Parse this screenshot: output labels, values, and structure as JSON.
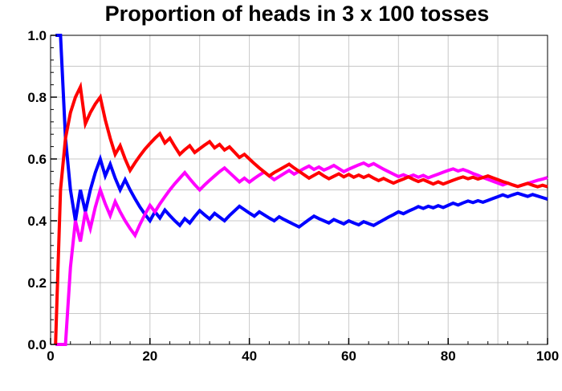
{
  "chart_data": {
    "type": "line",
    "title": "Proportion of heads in 3 x 100 tosses",
    "xlabel": "",
    "ylabel": "",
    "xlim": [
      0,
      100
    ],
    "ylim": [
      0,
      1
    ],
    "x_ticks": [
      0,
      20,
      40,
      60,
      80,
      100
    ],
    "y_ticks": [
      0.0,
      0.2,
      0.4,
      0.6,
      0.8,
      1.0
    ],
    "x_tick_labels": [
      "0",
      "20",
      "40",
      "60",
      "80",
      "100"
    ],
    "y_tick_labels": [
      "0.0",
      "0.2",
      "0.4",
      "0.6",
      "0.8",
      "1.0"
    ],
    "grid": true,
    "legend": "none",
    "series": [
      {
        "color": "#0000ff",
        "x": [
          1,
          2,
          3,
          4,
          5,
          6,
          7,
          8,
          9,
          10,
          11,
          12,
          13,
          14,
          15,
          16,
          17,
          18,
          19,
          20,
          21,
          22,
          23,
          24,
          25,
          26,
          27,
          28,
          29,
          30,
          31,
          32,
          33,
          34,
          35,
          36,
          37,
          38,
          39,
          40,
          41,
          42,
          43,
          44,
          45,
          46,
          47,
          48,
          49,
          50,
          51,
          52,
          53,
          54,
          55,
          56,
          57,
          58,
          59,
          60,
          61,
          62,
          63,
          64,
          65,
          66,
          67,
          68,
          69,
          70,
          71,
          72,
          73,
          74,
          75,
          76,
          77,
          78,
          79,
          80,
          81,
          82,
          83,
          84,
          85,
          86,
          87,
          88,
          89,
          90,
          91,
          92,
          93,
          94,
          95,
          96,
          97,
          98,
          99,
          100
        ],
        "values": [
          1.0,
          1.0,
          0.667,
          0.5,
          0.4,
          0.5,
          0.429,
          0.5,
          0.556,
          0.6,
          0.545,
          0.583,
          0.538,
          0.5,
          0.533,
          0.5,
          0.471,
          0.444,
          0.421,
          0.4,
          0.429,
          0.409,
          0.435,
          0.417,
          0.4,
          0.385,
          0.407,
          0.393,
          0.414,
          0.433,
          0.419,
          0.406,
          0.424,
          0.412,
          0.4,
          0.417,
          0.432,
          0.447,
          0.436,
          0.425,
          0.415,
          0.429,
          0.419,
          0.409,
          0.4,
          0.413,
          0.404,
          0.396,
          0.388,
          0.38,
          0.392,
          0.404,
          0.415,
          0.407,
          0.4,
          0.393,
          0.404,
          0.397,
          0.39,
          0.4,
          0.393,
          0.387,
          0.397,
          0.391,
          0.385,
          0.394,
          0.403,
          0.412,
          0.42,
          0.429,
          0.423,
          0.431,
          0.438,
          0.446,
          0.44,
          0.447,
          0.442,
          0.449,
          0.443,
          0.45,
          0.457,
          0.451,
          0.458,
          0.464,
          0.459,
          0.465,
          0.46,
          0.466,
          0.472,
          0.478,
          0.484,
          0.478,
          0.484,
          0.489,
          0.484,
          0.479,
          0.485,
          0.48,
          0.475,
          0.47
        ]
      },
      {
        "color": "#ff00ff",
        "x": [
          1,
          2,
          3,
          4,
          5,
          6,
          7,
          8,
          9,
          10,
          11,
          12,
          13,
          14,
          15,
          16,
          17,
          18,
          19,
          20,
          21,
          22,
          23,
          24,
          25,
          26,
          27,
          28,
          29,
          30,
          31,
          32,
          33,
          34,
          35,
          36,
          37,
          38,
          39,
          40,
          41,
          42,
          43,
          44,
          45,
          46,
          47,
          48,
          49,
          50,
          51,
          52,
          53,
          54,
          55,
          56,
          57,
          58,
          59,
          60,
          61,
          62,
          63,
          64,
          65,
          66,
          67,
          68,
          69,
          70,
          71,
          72,
          73,
          74,
          75,
          76,
          77,
          78,
          79,
          80,
          81,
          82,
          83,
          84,
          85,
          86,
          87,
          88,
          89,
          90,
          91,
          92,
          93,
          94,
          95,
          96,
          97,
          98,
          99,
          100
        ],
        "values": [
          0.0,
          0.0,
          0.0,
          0.25,
          0.4,
          0.333,
          0.429,
          0.375,
          0.444,
          0.5,
          0.455,
          0.417,
          0.462,
          0.429,
          0.4,
          0.375,
          0.353,
          0.389,
          0.421,
          0.45,
          0.429,
          0.455,
          0.478,
          0.5,
          0.52,
          0.538,
          0.556,
          0.536,
          0.517,
          0.5,
          0.516,
          0.531,
          0.545,
          0.559,
          0.571,
          0.556,
          0.541,
          0.526,
          0.538,
          0.525,
          0.537,
          0.548,
          0.558,
          0.545,
          0.533,
          0.543,
          0.553,
          0.563,
          0.551,
          0.56,
          0.569,
          0.577,
          0.566,
          0.574,
          0.564,
          0.571,
          0.579,
          0.569,
          0.559,
          0.567,
          0.574,
          0.581,
          0.587,
          0.578,
          0.585,
          0.576,
          0.567,
          0.559,
          0.551,
          0.543,
          0.549,
          0.542,
          0.548,
          0.541,
          0.547,
          0.539,
          0.545,
          0.551,
          0.557,
          0.563,
          0.568,
          0.561,
          0.566,
          0.56,
          0.553,
          0.547,
          0.54,
          0.534,
          0.528,
          0.522,
          0.516,
          0.522,
          0.516,
          0.511,
          0.516,
          0.521,
          0.526,
          0.531,
          0.535,
          0.54
        ]
      },
      {
        "color": "#ff0000",
        "x": [
          1,
          2,
          3,
          4,
          5,
          6,
          7,
          8,
          9,
          10,
          11,
          12,
          13,
          14,
          15,
          16,
          17,
          18,
          19,
          20,
          21,
          22,
          23,
          24,
          25,
          26,
          27,
          28,
          29,
          30,
          31,
          32,
          33,
          34,
          35,
          36,
          37,
          38,
          39,
          40,
          41,
          42,
          43,
          44,
          45,
          46,
          47,
          48,
          49,
          50,
          51,
          52,
          53,
          54,
          55,
          56,
          57,
          58,
          59,
          60,
          61,
          62,
          63,
          64,
          65,
          66,
          67,
          68,
          69,
          70,
          71,
          72,
          73,
          74,
          75,
          76,
          77,
          78,
          79,
          80,
          81,
          82,
          83,
          84,
          85,
          86,
          87,
          88,
          89,
          90,
          91,
          92,
          93,
          94,
          95,
          96,
          97,
          98,
          99,
          100
        ],
        "values": [
          0.0,
          0.5,
          0.667,
          0.75,
          0.8,
          0.833,
          0.714,
          0.75,
          0.778,
          0.8,
          0.727,
          0.667,
          0.615,
          0.643,
          0.6,
          0.563,
          0.588,
          0.611,
          0.632,
          0.65,
          0.667,
          0.682,
          0.652,
          0.667,
          0.64,
          0.615,
          0.63,
          0.643,
          0.621,
          0.633,
          0.645,
          0.656,
          0.636,
          0.647,
          0.629,
          0.639,
          0.622,
          0.605,
          0.615,
          0.6,
          0.585,
          0.571,
          0.558,
          0.545,
          0.556,
          0.565,
          0.574,
          0.583,
          0.571,
          0.56,
          0.549,
          0.538,
          0.547,
          0.556,
          0.545,
          0.536,
          0.544,
          0.552,
          0.542,
          0.55,
          0.541,
          0.548,
          0.54,
          0.547,
          0.538,
          0.53,
          0.537,
          0.529,
          0.522,
          0.529,
          0.535,
          0.542,
          0.534,
          0.527,
          0.533,
          0.526,
          0.519,
          0.526,
          0.519,
          0.525,
          0.531,
          0.537,
          0.542,
          0.536,
          0.541,
          0.535,
          0.54,
          0.545,
          0.539,
          0.533,
          0.527,
          0.522,
          0.516,
          0.511,
          0.516,
          0.521,
          0.515,
          0.51,
          0.515,
          0.51
        ]
      }
    ]
  }
}
